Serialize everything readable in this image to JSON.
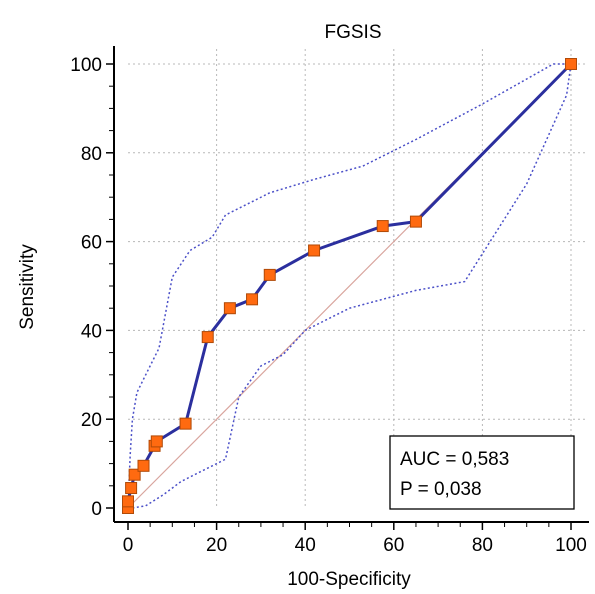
{
  "chart_data": {
    "type": "line",
    "title": "FGSIS",
    "xlabel": "100-Specificity",
    "ylabel": "Sensitivity",
    "xlim": [
      0,
      100
    ],
    "ylim": [
      0,
      100
    ],
    "xticks": [
      "0",
      "20",
      "40",
      "60",
      "80",
      "100"
    ],
    "yticks": [
      "0",
      "20",
      "40",
      "60",
      "80",
      "100"
    ],
    "grid": true,
    "colors": {
      "roc_line": "#2b2f9e",
      "marker_fill": "#ff6a10",
      "marker_stroke": "#b04a08",
      "ci_line": "#4b50c8",
      "diagonal": "#d9a59e"
    },
    "series": [
      {
        "style": "solid-with-square-markers",
        "x": [
          0,
          0,
          0.7,
          1.5,
          3.5,
          6,
          6.5,
          13,
          18,
          23,
          28,
          32,
          42,
          57.5,
          65,
          100
        ],
        "y": [
          0,
          1.5,
          4.5,
          7.5,
          9.5,
          14,
          15,
          19,
          38.5,
          45,
          47,
          52.5,
          58,
          63.5,
          64.5,
          100
        ]
      },
      {
        "style": "dotted-upper-ci",
        "x": [
          0,
          0.5,
          1,
          2,
          4,
          7,
          10,
          14,
          19,
          22,
          32,
          42,
          53,
          65,
          80,
          96,
          100
        ],
        "y": [
          0,
          12,
          20,
          26,
          30,
          36,
          52,
          58,
          61,
          66,
          71,
          74,
          77,
          83,
          91,
          100,
          100
        ]
      },
      {
        "style": "dotted-lower-ci",
        "x": [
          1,
          4,
          8,
          12,
          17,
          22,
          25,
          30,
          35,
          40,
          50,
          65,
          76,
          90,
          99,
          100
        ],
        "y": [
          0,
          0.5,
          3,
          6,
          8.5,
          11,
          25,
          32,
          34.5,
          40,
          45,
          49,
          51,
          73,
          93,
          100
        ]
      },
      {
        "style": "diagonal-reference",
        "x": [
          0,
          100
        ],
        "y": [
          0,
          100
        ]
      }
    ],
    "annotations": {
      "auc": "AUC = 0,583",
      "p": "P = 0,038"
    }
  }
}
